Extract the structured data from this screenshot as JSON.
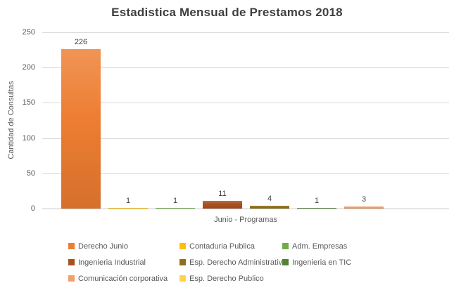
{
  "chart_data": {
    "type": "bar",
    "title": "Estadistica Mensual de Prestamos 2018",
    "xlabel": "Junio - Programas",
    "ylabel": "Cantidad de Consultas",
    "ylim": [
      0,
      250
    ],
    "yticks": [
      0,
      50,
      100,
      150,
      200,
      250
    ],
    "grid": true,
    "legend_position": "bottom",
    "categories": [
      "Junio"
    ],
    "series": [
      {
        "name": "Derecho Junio",
        "value": 226,
        "color": "#ED7D31"
      },
      {
        "name": "Contaduria Publica",
        "value": 1,
        "color": "#FFC000"
      },
      {
        "name": "Adm. Empresas",
        "value": 1,
        "color": "#70AD47"
      },
      {
        "name": "Ingenieria Industrial",
        "value": 11,
        "color": "#A9501F"
      },
      {
        "name": "Esp. Derecho Administrativo",
        "value": 4,
        "color": "#8F7019"
      },
      {
        "name": "Ingenieria en TIC",
        "value": 1,
        "color": "#538135"
      },
      {
        "name": "Comunicación corporativa",
        "value": 3,
        "color": "#F2A06B"
      },
      {
        "name": "Esp. Derecho Publico",
        "value": null,
        "color": "#FFD34D"
      }
    ]
  }
}
